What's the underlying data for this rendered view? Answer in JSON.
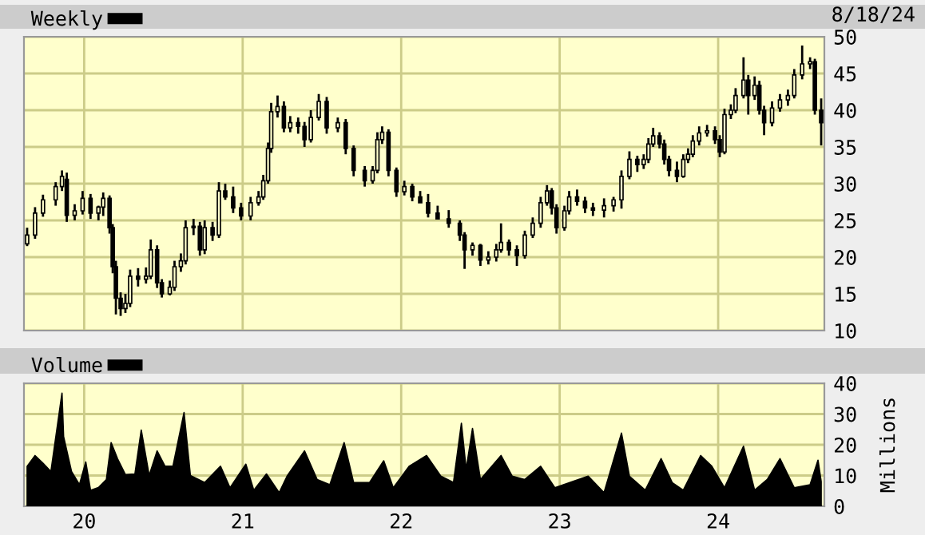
{
  "chart_data": [
    {
      "type": "candlestick",
      "legend": "top left",
      "grid": true,
      "tick_labels": "y",
      "annotations": [
        "8/18/24"
      ],
      "xlim": [
        2019.62,
        2024.67
      ],
      "xticks": [
        {
          "value": 2020,
          "label": null
        },
        {
          "value": 2021,
          "label": null
        },
        {
          "value": 2022,
          "label": null
        },
        {
          "value": 2023,
          "label": null
        },
        {
          "value": 2024,
          "label": null
        }
      ],
      "ylim": [
        10,
        50
      ],
      "yticks": [
        10,
        15,
        20,
        25,
        30,
        35,
        40,
        45,
        50
      ],
      "series": [
        {
          "name": "Weekly",
          "color": "#000000",
          "x": [
            2019.64,
            2019.69,
            2019.74,
            2019.82,
            2019.86,
            2019.89,
            2019.94,
            2019.99,
            2020.04,
            2020.09,
            2020.12,
            2020.16,
            2020.18,
            2020.2,
            2020.23,
            2020.26,
            2020.29,
            2020.34,
            2020.39,
            2020.42,
            2020.46,
            2020.49,
            2020.54,
            2020.57,
            2020.61,
            2020.64,
            2020.69,
            2020.73,
            2020.76,
            2020.81,
            2020.85,
            2020.89,
            2020.94,
            2020.99,
            2021.05,
            2021.1,
            2021.13,
            2021.16,
            2021.18,
            2021.22,
            2021.26,
            2021.3,
            2021.35,
            2021.39,
            2021.43,
            2021.48,
            2021.53,
            2021.6,
            2021.65,
            2021.7,
            2021.77,
            2021.82,
            2021.85,
            2021.88,
            2021.92,
            2021.97,
            2022.02,
            2022.07,
            2022.12,
            2022.17,
            2022.23,
            2022.3,
            2022.37,
            2022.4,
            2022.45,
            2022.5,
            2022.55,
            2022.6,
            2022.63,
            2022.68,
            2022.73,
            2022.78,
            2022.83,
            2022.88,
            2022.92,
            2022.95,
            2022.98,
            2023.03,
            2023.06,
            2023.11,
            2023.16,
            2023.21,
            2023.28,
            2023.34,
            2023.39,
            2023.44,
            2023.49,
            2023.53,
            2023.56,
            2023.59,
            2023.63,
            2023.66,
            2023.69,
            2023.74,
            2023.78,
            2023.81,
            2023.84,
            2023.88,
            2023.93,
            2023.98,
            2024.01,
            2024.04,
            2024.08,
            2024.11,
            2024.16,
            2024.19,
            2024.23,
            2024.26,
            2024.29,
            2024.34,
            2024.39,
            2024.44,
            2024.48,
            2024.53,
            2024.58,
            2024.61,
            2024.65
          ],
          "ohlc": [
            [
              21.8,
              24,
              21.5,
              23
            ],
            [
              23,
              26.8,
              22.5,
              26
            ],
            [
              26,
              28.5,
              25.5,
              27.8
            ],
            [
              27.8,
              30.2,
              27,
              29.6
            ],
            [
              29.6,
              31.8,
              29,
              31
            ],
            [
              30.6,
              31.5,
              24.8,
              25.7
            ],
            [
              25.7,
              27.2,
              25,
              26.3
            ],
            [
              26.3,
              29,
              25.8,
              28
            ],
            [
              28,
              28.6,
              25.2,
              26
            ],
            [
              26,
              27,
              25,
              26.8
            ],
            [
              26.8,
              28.8,
              25.6,
              28
            ],
            [
              28,
              28.4,
              23.2,
              24
            ],
            [
              24,
              24.5,
              17.8,
              18.7
            ],
            [
              18.7,
              19.5,
              12.2,
              14.4
            ],
            [
              14.4,
              15.2,
              12,
              13
            ],
            [
              13,
              15,
              12.4,
              13.7
            ],
            [
              13.7,
              18.3,
              13.2,
              17.4
            ],
            [
              17.4,
              18.5,
              16,
              17
            ],
            [
              17,
              18.6,
              16.4,
              17.4
            ],
            [
              17.4,
              22.4,
              17,
              21
            ],
            [
              21,
              21.6,
              15.8,
              16.5
            ],
            [
              16.5,
              17,
              14.5,
              15
            ],
            [
              15,
              16.8,
              14.8,
              15.9
            ],
            [
              15.9,
              19.5,
              15.4,
              18.7
            ],
            [
              18.7,
              20.5,
              18,
              19.5
            ],
            [
              19.5,
              25,
              19,
              24
            ],
            [
              24,
              25.2,
              23,
              24.2
            ],
            [
              24.2,
              24.8,
              20.2,
              21
            ],
            [
              21,
              25,
              20.4,
              24
            ],
            [
              24,
              24.8,
              22.2,
              23
            ],
            [
              23,
              30.2,
              22.6,
              29
            ],
            [
              29,
              30,
              27.8,
              28.2
            ],
            [
              28.2,
              29.6,
              26,
              26.7
            ],
            [
              26.7,
              27.4,
              25,
              25.6
            ],
            [
              25.6,
              28.2,
              25,
              27.4
            ],
            [
              27.4,
              29,
              27,
              28.2
            ],
            [
              28.2,
              31.2,
              27.8,
              30.4
            ],
            [
              30.4,
              35.6,
              30,
              34.8
            ],
            [
              34.8,
              41,
              34.2,
              39.8
            ],
            [
              39.8,
              42,
              39,
              40.5
            ],
            [
              40.5,
              41.2,
              37,
              37.6
            ],
            [
              37.6,
              39.2,
              37,
              38.3
            ],
            [
              38.3,
              39,
              36.8,
              37.8
            ],
            [
              37.8,
              38.4,
              35,
              36
            ],
            [
              36,
              40,
              35.6,
              39
            ],
            [
              39,
              42.2,
              38.6,
              41.2
            ],
            [
              41.2,
              41.8,
              36.8,
              37.6
            ],
            [
              37.6,
              39,
              37,
              38.3
            ],
            [
              38.3,
              38.8,
              34,
              34.8
            ],
            [
              34.8,
              35.2,
              31,
              31.8
            ],
            [
              31.8,
              32.4,
              29.6,
              30.4
            ],
            [
              30.4,
              32.4,
              30,
              31.8
            ],
            [
              31.8,
              37,
              31.4,
              36
            ],
            [
              36,
              37.8,
              35.4,
              37
            ],
            [
              37,
              37.4,
              31,
              31.8
            ],
            [
              31.8,
              32.2,
              28.2,
              28.9
            ],
            [
              28.9,
              30.4,
              28.4,
              29.6
            ],
            [
              29.6,
              30,
              27.6,
              28.2
            ],
            [
              28.2,
              29,
              27.4,
              27.4
            ],
            [
              27.4,
              28.6,
              25.4,
              26
            ],
            [
              26,
              27,
              25.2,
              25.2
            ],
            [
              25.2,
              26.4,
              24,
              24.6
            ],
            [
              24.6,
              25,
              22.2,
              23
            ],
            [
              23,
              23.4,
              18.4,
              21
            ],
            [
              21,
              22,
              20.2,
              21.6
            ],
            [
              21.6,
              21.8,
              18.8,
              19.6
            ],
            [
              19.6,
              20.8,
              19,
              20
            ],
            [
              20,
              21.8,
              19.4,
              21
            ],
            [
              21,
              24.6,
              20.6,
              22
            ],
            [
              22,
              22.4,
              20.2,
              21
            ],
            [
              21,
              21.6,
              18.8,
              20.2
            ],
            [
              20.2,
              23.6,
              19.8,
              23
            ],
            [
              23,
              25.4,
              22.6,
              24.6
            ],
            [
              24.6,
              28.2,
              24,
              27.4
            ],
            [
              27.4,
              29.8,
              27,
              29
            ],
            [
              29,
              29.4,
              25.8,
              26.7
            ],
            [
              26.7,
              27.2,
              23.2,
              24
            ],
            [
              24,
              27,
              23.6,
              26.3
            ],
            [
              26.3,
              29,
              25.8,
              28.2
            ],
            [
              28.2,
              29.2,
              27,
              27.6
            ],
            [
              27.6,
              28.2,
              26,
              26.7
            ],
            [
              26.7,
              27.4,
              25.6,
              26.4
            ],
            [
              26.4,
              28,
              25.4,
              27
            ],
            [
              27,
              28.2,
              26.2,
              27.8
            ],
            [
              27.8,
              31.8,
              26.6,
              31
            ],
            [
              31,
              34.4,
              30.6,
              33.3
            ],
            [
              33.3,
              33.8,
              31.6,
              32.6
            ],
            [
              32.6,
              34,
              32,
              33.3
            ],
            [
              33.3,
              36.2,
              32.8,
              35.4
            ],
            [
              35.4,
              37.6,
              35,
              36.5
            ],
            [
              36.5,
              37,
              34.8,
              35.4
            ],
            [
              35.4,
              36,
              32.6,
              33.3
            ],
            [
              33.3,
              33.8,
              31,
              31.8
            ],
            [
              31.8,
              33,
              30.2,
              31
            ],
            [
              31,
              34,
              30.8,
              33.3
            ],
            [
              33.3,
              34.8,
              32.8,
              34
            ],
            [
              34,
              36.6,
              33.6,
              35.8
            ],
            [
              35.8,
              37.8,
              35.2,
              36.9
            ],
            [
              36.9,
              38,
              36.4,
              37.2
            ],
            [
              37.2,
              37.8,
              35.4,
              36
            ],
            [
              36,
              36.6,
              33.6,
              34.3
            ],
            [
              34.3,
              40.2,
              34,
              39.4
            ],
            [
              39.4,
              40.8,
              38.8,
              40
            ],
            [
              40,
              43,
              39.6,
              42
            ],
            [
              42,
              47.2,
              41.6,
              44.1
            ],
            [
              44.1,
              44.8,
              39.4,
              42
            ],
            [
              42,
              44.6,
              41.4,
              43.4
            ],
            [
              43.4,
              44,
              39.4,
              40
            ],
            [
              40,
              40.6,
              36.6,
              38.3
            ],
            [
              38.3,
              41.2,
              37.8,
              40.3
            ],
            [
              40.3,
              42.2,
              39.8,
              41.4
            ],
            [
              41.4,
              42.8,
              40.6,
              42
            ],
            [
              42,
              45.6,
              41.6,
              44.8
            ],
            [
              44.8,
              48.8,
              44.2,
              46.3
            ],
            [
              46.3,
              47.2,
              45.6,
              46.6
            ],
            [
              46.6,
              47,
              39.4,
              40
            ],
            [
              40,
              41.6,
              35.2,
              38.3
            ]
          ]
        }
      ]
    },
    {
      "type": "area",
      "legend": "top left",
      "grid": true,
      "ylabel": "Millions",
      "xlim": [
        2019.62,
        2024.67
      ],
      "xticks": [
        {
          "value": 2020,
          "label": "20"
        },
        {
          "value": 2021,
          "label": "21"
        },
        {
          "value": 2022,
          "label": "22"
        },
        {
          "value": 2023,
          "label": "23"
        },
        {
          "value": 2024,
          "label": "24"
        }
      ],
      "ylim": [
        0,
        40
      ],
      "yticks": [
        0,
        10,
        20,
        30,
        40
      ],
      "series": [
        {
          "name": "Volume",
          "color": "#000000",
          "x": [
            2019.64,
            2019.69,
            2019.74,
            2019.79,
            2019.86,
            2019.87,
            2019.92,
            2019.97,
            2020.01,
            2020.04,
            2020.09,
            2020.14,
            2020.17,
            2020.21,
            2020.26,
            2020.32,
            2020.36,
            2020.41,
            2020.46,
            2020.51,
            2020.56,
            2020.63,
            2020.67,
            2020.76,
            2020.86,
            2020.92,
            2021.02,
            2021.07,
            2021.15,
            2021.23,
            2021.28,
            2021.39,
            2021.47,
            2021.55,
            2021.64,
            2021.7,
            2021.8,
            2021.89,
            2021.95,
            2022.05,
            2022.16,
            2022.25,
            2022.33,
            2022.38,
            2022.41,
            2022.45,
            2022.5,
            2022.63,
            2022.7,
            2022.78,
            2022.88,
            2022.97,
            2023.18,
            2023.28,
            2023.39,
            2023.44,
            2023.54,
            2023.64,
            2023.71,
            2023.78,
            2023.89,
            2023.96,
            2024.04,
            2024.16,
            2024.23,
            2024.31,
            2024.39,
            2024.48,
            2024.58,
            2024.63,
            2024.65
          ],
          "values": [
            13,
            16.5,
            14,
            11.3,
            36.8,
            22.7,
            11.3,
            7,
            14.4,
            5.2,
            6.1,
            8.7,
            20.7,
            15.5,
            10.3,
            10.5,
            24.8,
            10,
            18,
            13,
            13,
            30.5,
            10,
            7.7,
            13,
            6,
            13.7,
            5.2,
            10.5,
            4.4,
            9.8,
            18,
            8.7,
            7,
            20.7,
            7.7,
            7.7,
            14.8,
            6,
            13,
            16.5,
            9.8,
            7.7,
            27,
            12,
            25.3,
            8.7,
            16.5,
            9.8,
            8.7,
            13,
            6,
            9.8,
            4.4,
            23.8,
            9.8,
            5.2,
            15.5,
            7.7,
            5.2,
            16.5,
            13,
            6,
            19.5,
            5.2,
            8.7,
            15.5,
            6,
            7,
            15,
            8
          ]
        }
      ]
    }
  ]
}
